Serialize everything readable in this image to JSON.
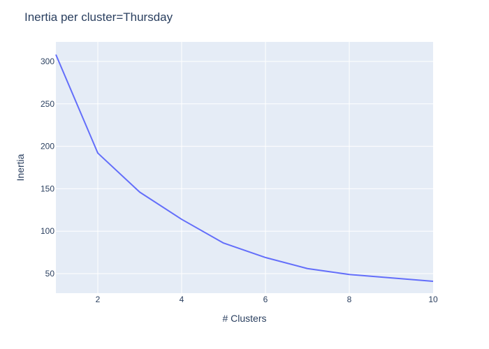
{
  "chart_data": {
    "type": "line",
    "title": "Inertia per cluster=Thursday",
    "xlabel": "# Clusters",
    "ylabel": "Inertia",
    "x": [
      1,
      2,
      3,
      4,
      5,
      6,
      7,
      8,
      9,
      10
    ],
    "series": [
      {
        "values": [
          308,
          192,
          146,
          114,
          86,
          69,
          56,
          49,
          45,
          41
        ]
      }
    ],
    "xlim": [
      1,
      10
    ],
    "ylim": [
      27,
      323
    ],
    "xticks": [
      2,
      4,
      6,
      8,
      10
    ],
    "yticks": [
      50,
      100,
      150,
      200,
      250,
      300
    ],
    "grid": true,
    "colors": {
      "background": "#e5ecf6",
      "line": "#636efa",
      "grid": "#ffffff",
      "text": "#2a3f5f"
    }
  }
}
